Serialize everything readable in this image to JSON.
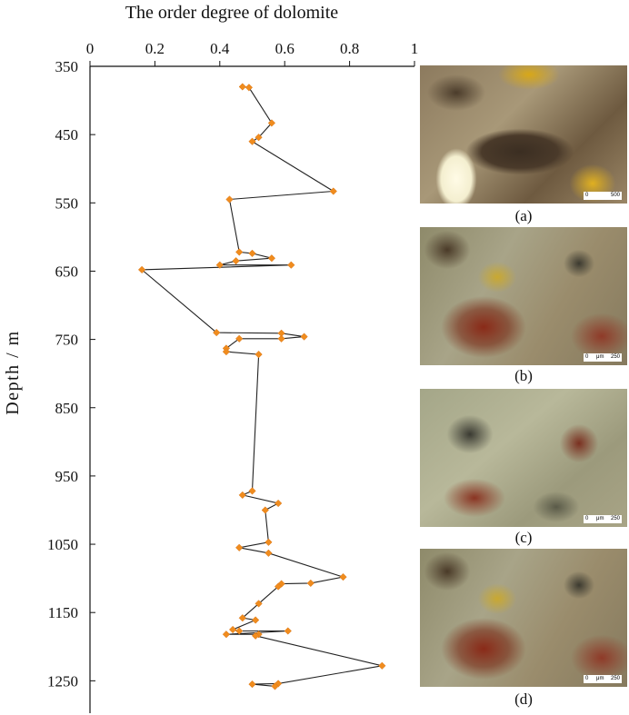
{
  "chart_data": {
    "type": "line",
    "xlabel": "The order degree of dolomite",
    "ylabel": "Depth / m",
    "xlim": [
      0,
      1
    ],
    "ylim": [
      350,
      1290
    ],
    "x_axis_position": "top",
    "y_inverted": true,
    "xticks": [
      "0",
      "0.2",
      "0.4",
      "0.6",
      "0.8",
      "1"
    ],
    "yticks": [
      "350",
      "450",
      "550",
      "650",
      "750",
      "850",
      "950",
      "1050",
      "1150",
      "1250"
    ],
    "marker_color": "#f08c1e",
    "line_color": "#222222",
    "points": [
      {
        "x": 0.47,
        "y": 380
      },
      {
        "x": 0.49,
        "y": 381
      },
      {
        "x": 0.56,
        "y": 433
      },
      {
        "x": 0.52,
        "y": 454
      },
      {
        "x": 0.5,
        "y": 460
      },
      {
        "x": 0.75,
        "y": 533
      },
      {
        "x": 0.43,
        "y": 545
      },
      {
        "x": 0.46,
        "y": 622
      },
      {
        "x": 0.5,
        "y": 624
      },
      {
        "x": 0.56,
        "y": 631
      },
      {
        "x": 0.45,
        "y": 635
      },
      {
        "x": 0.4,
        "y": 641
      },
      {
        "x": 0.62,
        "y": 641
      },
      {
        "x": 0.16,
        "y": 648
      },
      {
        "x": 0.39,
        "y": 740
      },
      {
        "x": 0.59,
        "y": 741
      },
      {
        "x": 0.66,
        "y": 746
      },
      {
        "x": 0.59,
        "y": 749
      },
      {
        "x": 0.46,
        "y": 749
      },
      {
        "x": 0.42,
        "y": 763
      },
      {
        "x": 0.42,
        "y": 768
      },
      {
        "x": 0.52,
        "y": 772
      },
      {
        "x": 0.5,
        "y": 972
      },
      {
        "x": 0.47,
        "y": 978
      },
      {
        "x": 0.58,
        "y": 990
      },
      {
        "x": 0.54,
        "y": 1000
      },
      {
        "x": 0.55,
        "y": 1047
      },
      {
        "x": 0.46,
        "y": 1055
      },
      {
        "x": 0.55,
        "y": 1063
      },
      {
        "x": 0.78,
        "y": 1098
      },
      {
        "x": 0.68,
        "y": 1107
      },
      {
        "x": 0.59,
        "y": 1108
      },
      {
        "x": 0.58,
        "y": 1112
      },
      {
        "x": 0.52,
        "y": 1137
      },
      {
        "x": 0.47,
        "y": 1158
      },
      {
        "x": 0.51,
        "y": 1161
      },
      {
        "x": 0.44,
        "y": 1175
      },
      {
        "x": 0.46,
        "y": 1177
      },
      {
        "x": 0.61,
        "y": 1177
      },
      {
        "x": 0.42,
        "y": 1182
      },
      {
        "x": 0.52,
        "y": 1182
      },
      {
        "x": 0.51,
        "y": 1184
      },
      {
        "x": 0.9,
        "y": 1228
      },
      {
        "x": 0.58,
        "y": 1254
      },
      {
        "x": 0.5,
        "y": 1255
      },
      {
        "x": 0.57,
        "y": 1258
      }
    ]
  },
  "panels": [
    {
      "label": "(a)",
      "scale_unit": "",
      "scale_start": "0",
      "scale_end": "500"
    },
    {
      "label": "(b)",
      "scale_unit": "μm",
      "scale_start": "0",
      "scale_end": "250"
    },
    {
      "label": "(c)",
      "scale_unit": "μm",
      "scale_start": "0",
      "scale_end": "250"
    },
    {
      "label": "(d)",
      "scale_unit": "μm",
      "scale_start": "0",
      "scale_end": "250"
    }
  ]
}
